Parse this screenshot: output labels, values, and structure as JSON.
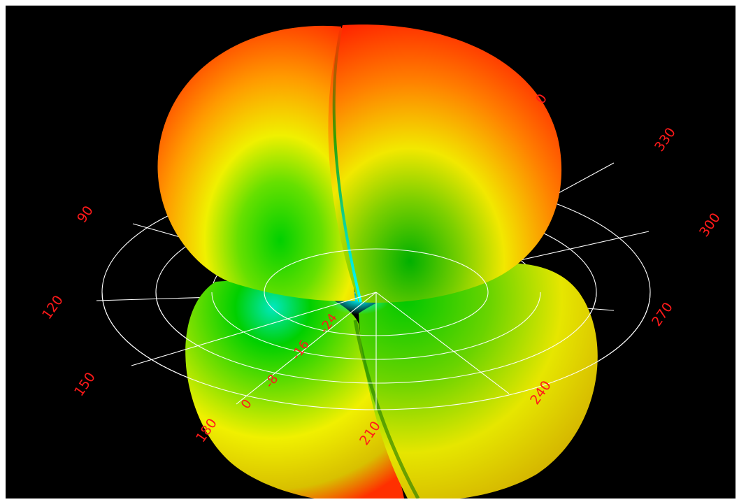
{
  "pattern": {
    "type": "3d-radiation-pattern",
    "colors": {
      "max": "#ff0000",
      "high": "#ff8000",
      "mid": "#ffff00",
      "low": "#00c000",
      "min": "#00ffff",
      "background": "#000000",
      "grid": "#ffffff",
      "labels": "#ff1a1a"
    }
  },
  "polar_grid": {
    "azimuth_labels": [
      "90",
      "120",
      "150",
      "180",
      "210",
      "240",
      "270",
      "300",
      "330",
      "0"
    ],
    "radial_labels": [
      "0",
      "-8",
      "-16",
      "-24"
    ]
  }
}
